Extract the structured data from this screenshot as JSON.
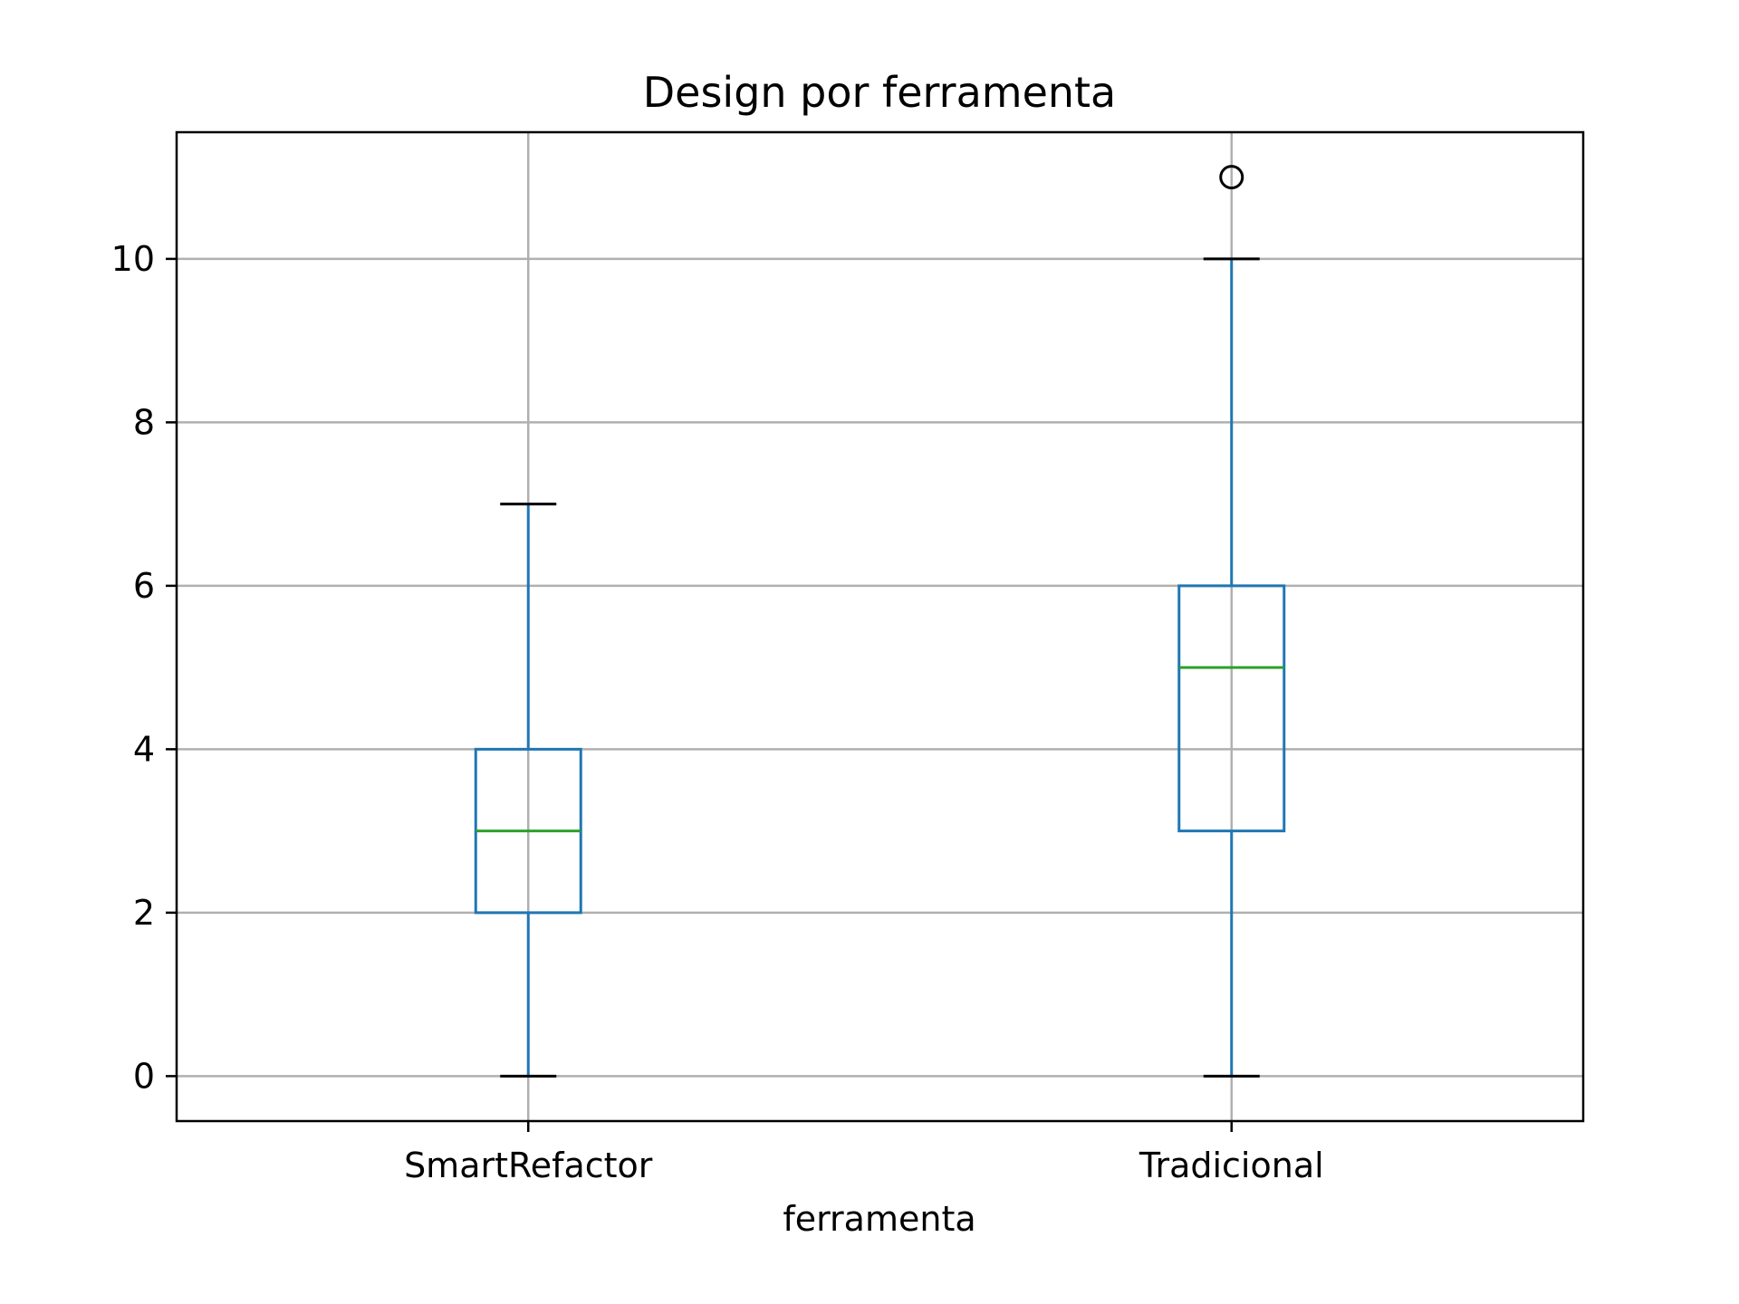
{
  "chart_data": {
    "type": "box",
    "title": "Design por ferramenta",
    "xlabel": "ferramenta",
    "ylabel": "",
    "ylim": [
      -0.55,
      11.55
    ],
    "yticks": [
      0,
      2,
      4,
      6,
      8,
      10
    ],
    "grid": true,
    "categories": [
      "SmartRefactor",
      "Tradicional"
    ],
    "boxes": [
      {
        "category": "SmartRefactor",
        "whisker_low": 0,
        "q1": 2,
        "median": 3,
        "q3": 4,
        "whisker_high": 7,
        "outliers": []
      },
      {
        "category": "Tradicional",
        "whisker_low": 0,
        "q1": 3,
        "median": 5,
        "q3": 6,
        "whisker_high": 10,
        "outliers": [
          11
        ]
      }
    ],
    "colors": {
      "box": "#1f77b4",
      "median": "#2ca02c",
      "cap": "#000000",
      "grid": "#b0b0b0",
      "outlier": "#000000"
    }
  }
}
